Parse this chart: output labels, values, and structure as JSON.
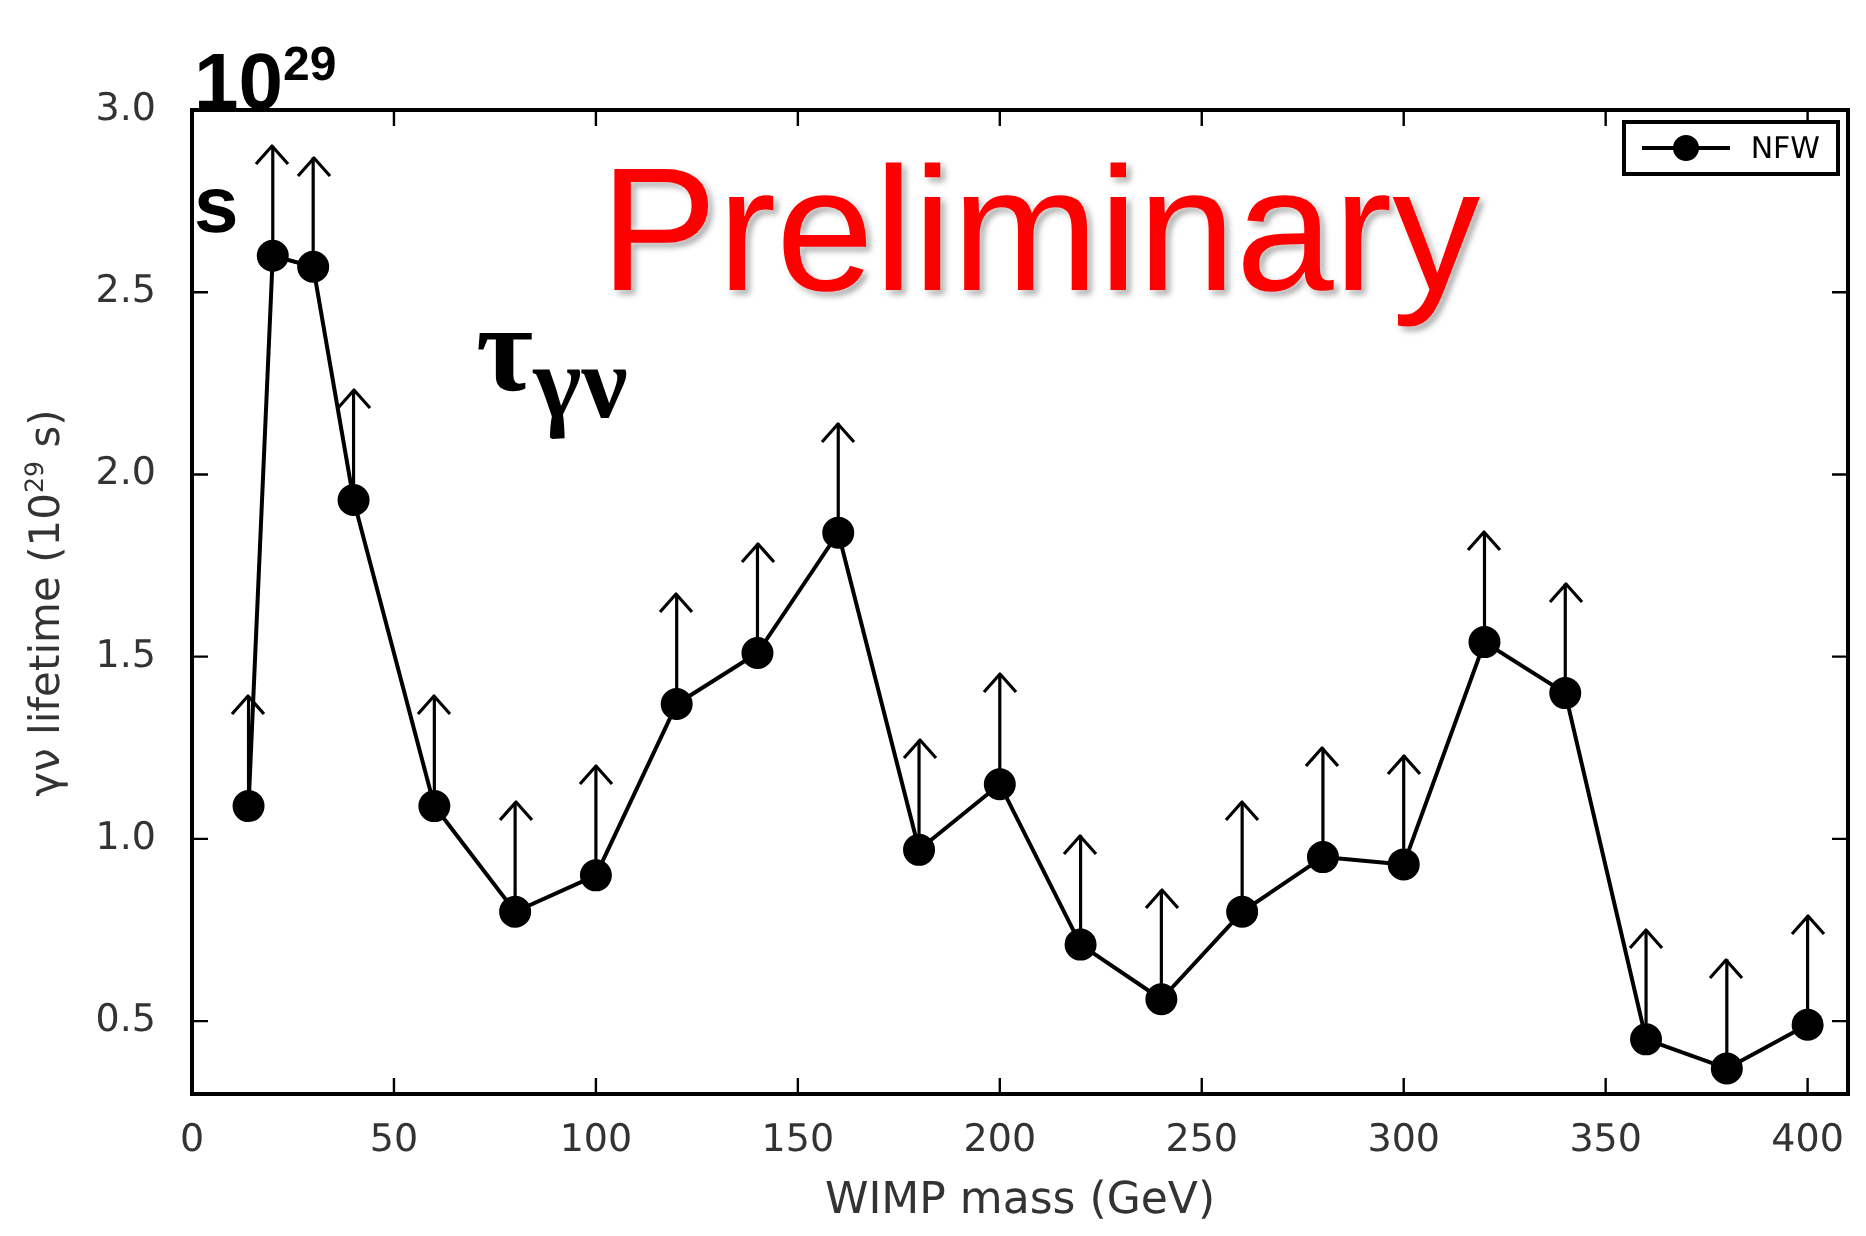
{
  "chart_data": {
    "type": "line",
    "xlabel": "WIMP mass (GeV)",
    "ylabel": "γν lifetime (10$^{29}$ s)",
    "x": [
      14,
      20,
      30,
      40,
      60,
      80,
      100,
      120,
      140,
      160,
      180,
      200,
      220,
      240,
      260,
      280,
      300,
      320,
      340,
      360,
      380,
      400
    ],
    "series": [
      {
        "name": "NFW",
        "color": "#000000",
        "values": [
          1.09,
          2.6,
          2.57,
          1.93,
          1.09,
          0.8,
          0.9,
          1.37,
          1.51,
          1.84,
          0.97,
          1.15,
          0.71,
          0.56,
          0.8,
          0.95,
          0.93,
          1.54,
          1.4,
          0.45,
          0.37,
          0.49
        ],
        "errors": [
          [
            1.09,
            1.39
          ],
          [
            2.6,
            2.9
          ],
          [
            2.57,
            2.87
          ],
          [
            1.93,
            2.23
          ],
          [
            1.09,
            1.39
          ],
          [
            0.8,
            1.1
          ],
          [
            0.9,
            1.2
          ],
          [
            1.37,
            1.67
          ],
          [
            1.51,
            1.81
          ],
          [
            1.84,
            2.14
          ],
          [
            0.97,
            1.27
          ],
          [
            1.15,
            1.45
          ],
          [
            0.71,
            1.01
          ],
          [
            0.56,
            0.86
          ],
          [
            0.8,
            1.1
          ],
          [
            0.95,
            1.25
          ],
          [
            0.93,
            1.23
          ],
          [
            1.54,
            1.84
          ],
          [
            1.4,
            1.7
          ],
          [
            0.45,
            0.75
          ],
          [
            0.37,
            0.67
          ],
          [
            0.49,
            0.79
          ]
        ]
      }
    ],
    "xlim": [
      0,
      410
    ],
    "xticks": [
      0,
      50,
      100,
      150,
      200,
      250,
      300,
      350,
      400
    ],
    "ylim": [
      0.3,
      3.0
    ],
    "yticks": [
      {
        "value": 0.5,
        "label": "0.5"
      },
      {
        "value": 1,
        "label": "1.0"
      },
      {
        "value": 1.5,
        "label": "1.5"
      },
      {
        "value": 2,
        "label": "2.0"
      },
      {
        "value": 2.5,
        "label": "2.5"
      },
      {
        "value": 3,
        "label": "3.0"
      }
    ],
    "marker": "circle",
    "line_style": "solid",
    "legend": "top right",
    "grid": false,
    "annotations": [
      "10$^{29}$ s",
      "τ$_{γν}$",
      "Preliminary"
    ]
  }
}
